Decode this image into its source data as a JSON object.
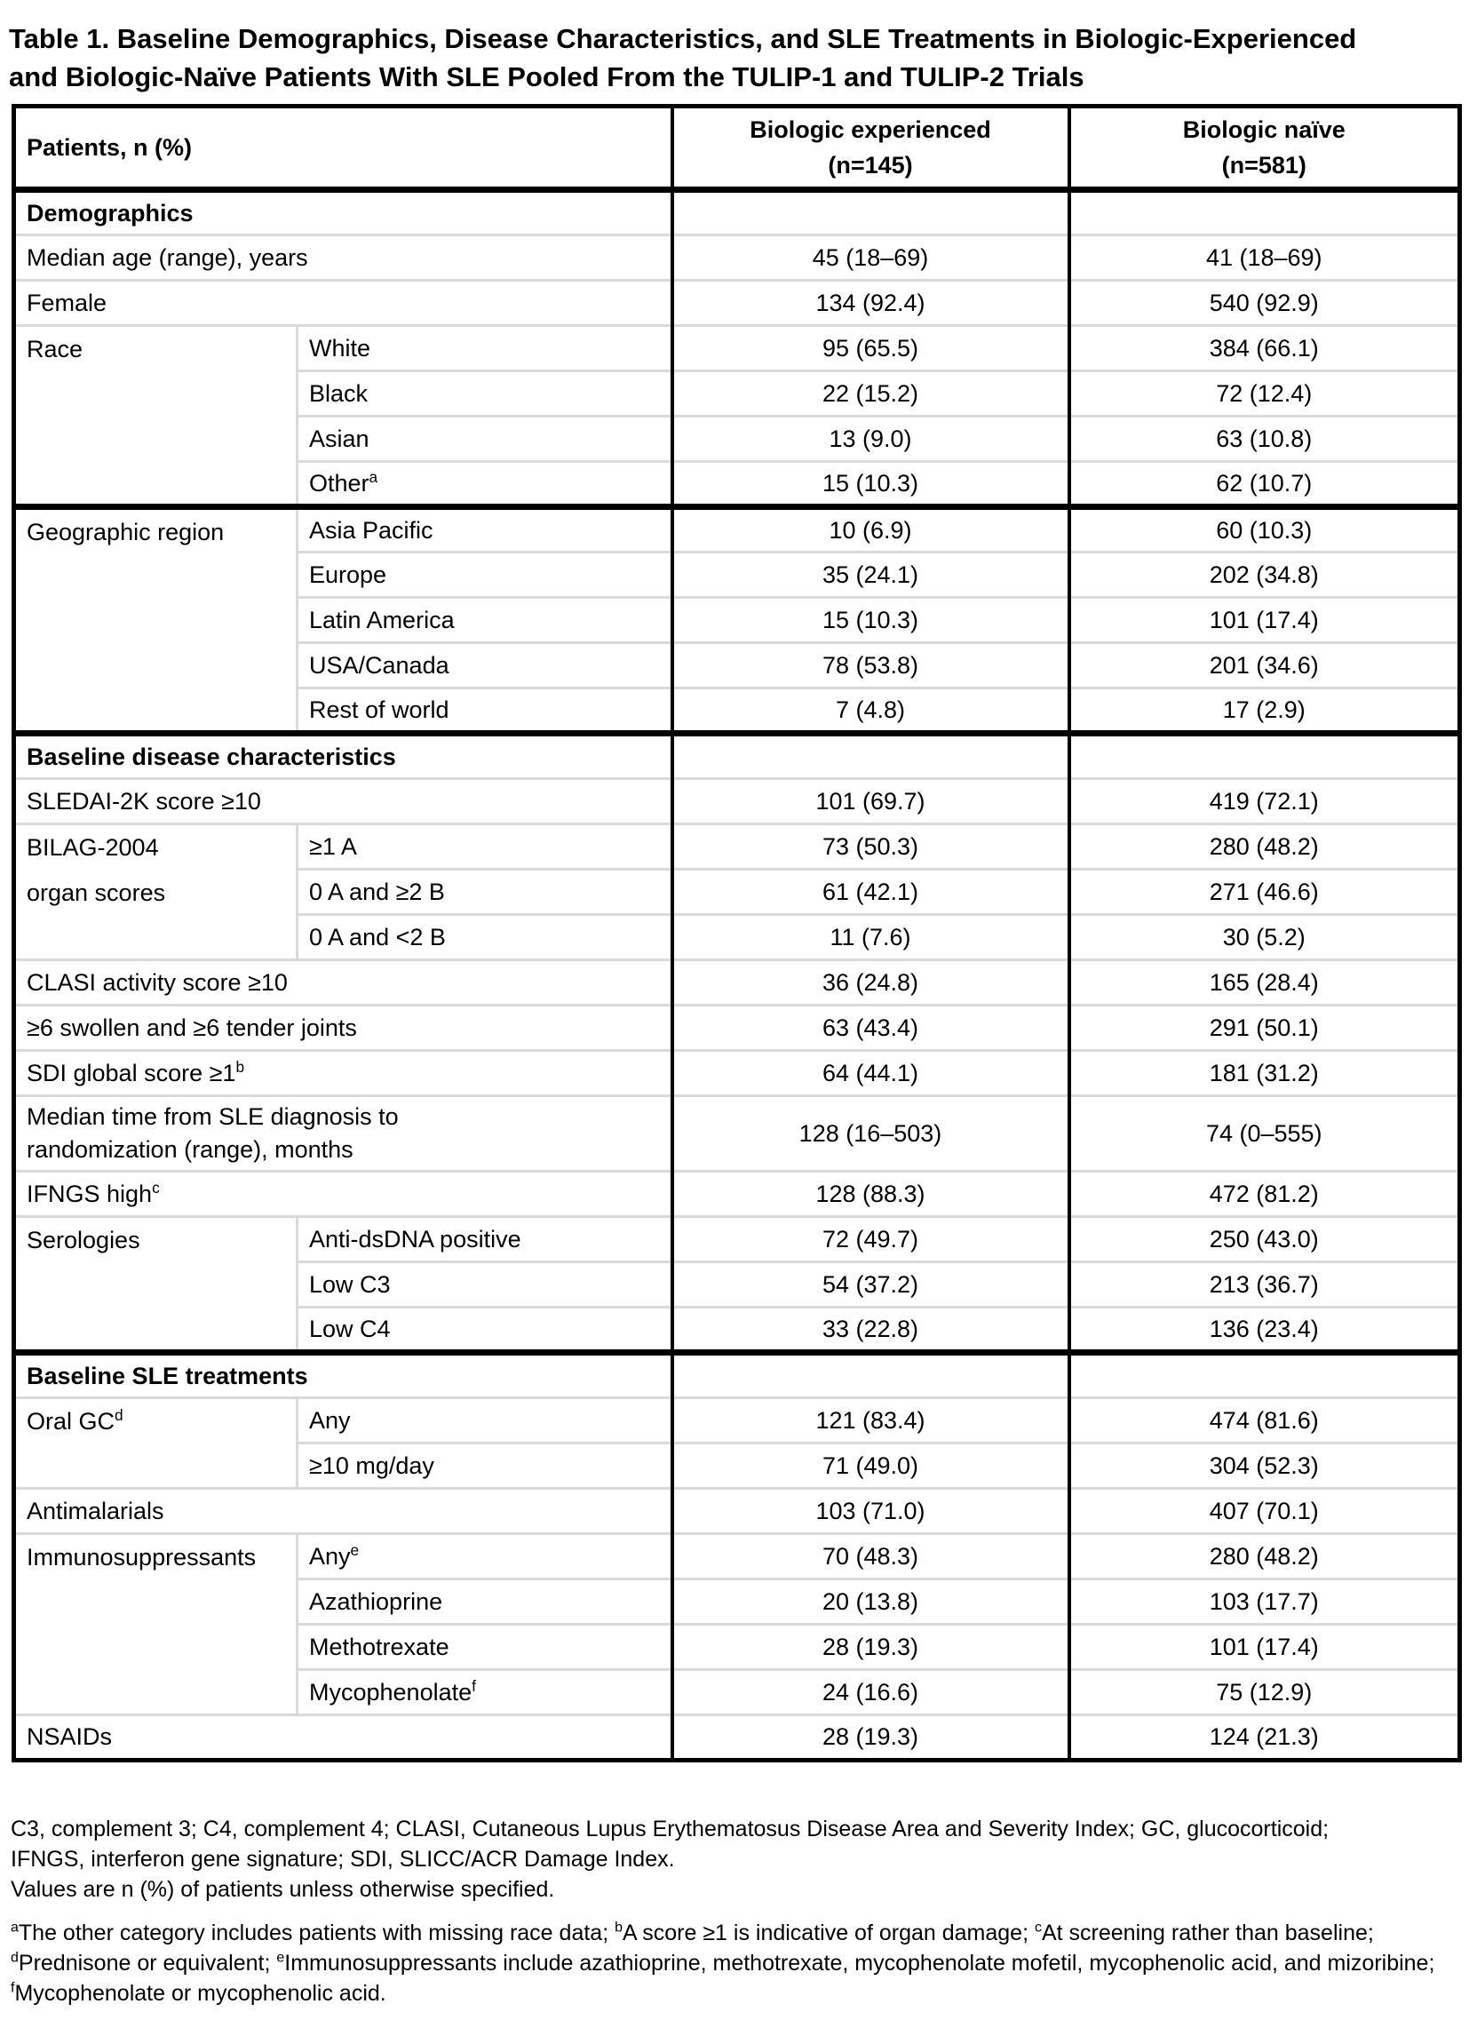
{
  "title": "Table 1. Baseline Demographics, Disease Characteristics, and SLE Treatments in Biologic-Experienced\nand Biologic-Naïve Patients With SLE Pooled From the TULIP-1 and TULIP-2 Trials",
  "colors": {
    "grid_gray": "#d9d9d9",
    "border_black": "#000000",
    "background": "#ffffff"
  },
  "table": {
    "corner_label": "Patients, n (%)",
    "columns": [
      {
        "name": "Biologic experienced",
        "n": "(n=145)"
      },
      {
        "name": "Biologic naïve",
        "n": "(n=581)"
      }
    ],
    "rows": [
      {
        "type": "section",
        "heading": "Demographics"
      },
      {
        "type": "row",
        "label": "Median age (range), years",
        "values": [
          "45 (18–69)",
          "41 (18–69)"
        ]
      },
      {
        "type": "row",
        "label": "Female",
        "values": [
          "134 (92.4)",
          "540 (92.9)"
        ]
      },
      {
        "type": "row",
        "group": {
          "label": "Race",
          "rowspan": 4
        },
        "label": "White",
        "values": [
          "95 (65.5)",
          "384 (66.1)"
        ]
      },
      {
        "type": "row",
        "in_group": true,
        "label": "Black",
        "values": [
          "22 (15.2)",
          "72 (12.4)"
        ]
      },
      {
        "type": "row",
        "in_group": true,
        "label": "Asian",
        "values": [
          "13 (9.0)",
          "63 (10.8)"
        ]
      },
      {
        "type": "row",
        "in_group": true,
        "label": "Other",
        "sup": "a",
        "values": [
          "15 (10.3)",
          "62 (10.7)"
        ]
      },
      {
        "type": "row",
        "thick_top": true,
        "group": {
          "label": "Geographic region",
          "rowspan": 5
        },
        "label": "Asia Pacific",
        "values": [
          "10 (6.9)",
          "60 (10.3)"
        ]
      },
      {
        "type": "row",
        "in_group": true,
        "label": "Europe",
        "values": [
          "35 (24.1)",
          "202 (34.8)"
        ]
      },
      {
        "type": "row",
        "in_group": true,
        "label": "Latin America",
        "values": [
          "15 (10.3)",
          "101 (17.4)"
        ]
      },
      {
        "type": "row",
        "in_group": true,
        "label": "USA/Canada",
        "values": [
          "78 (53.8)",
          "201 (34.6)"
        ]
      },
      {
        "type": "row",
        "in_group": true,
        "label": "Rest of world",
        "values": [
          "7 (4.8)",
          "17 (2.9)"
        ]
      },
      {
        "type": "section",
        "thick_top": true,
        "heading": "Baseline disease characteristics"
      },
      {
        "type": "row",
        "label": "SLEDAI-2K score ≥10",
        "values": [
          "101 (69.7)",
          "419 (72.1)"
        ]
      },
      {
        "type": "row",
        "group": {
          "label": "BILAG-2004\norgan scores",
          "rowspan": 3
        },
        "label": "≥1 A",
        "values": [
          "73 (50.3)",
          "280 (48.2)"
        ]
      },
      {
        "type": "row",
        "in_group": true,
        "label": "0 A and ≥2 B",
        "values": [
          "61 (42.1)",
          "271 (46.6)"
        ]
      },
      {
        "type": "row",
        "in_group": true,
        "label": "0 A and <2 B",
        "values": [
          "11 (7.6)",
          "30 (5.2)"
        ]
      },
      {
        "type": "row",
        "label": "CLASI activity score ≥10",
        "values": [
          "36 (24.8)",
          "165 (28.4)"
        ]
      },
      {
        "type": "row",
        "label": "≥6 swollen and ≥6 tender joints",
        "values": [
          "63 (43.4)",
          "291 (50.1)"
        ]
      },
      {
        "type": "row",
        "label": "SDI global score ≥1",
        "sup": "b",
        "values": [
          "64 (44.1)",
          "181 (31.2)"
        ]
      },
      {
        "type": "row",
        "tall": true,
        "label": "Median time from SLE diagnosis to\nrandomization (range), months",
        "values": [
          "128 (16–503)",
          "74 (0–555)"
        ]
      },
      {
        "type": "row",
        "label": "IFNGS high",
        "sup": "c",
        "values": [
          "128 (88.3)",
          "472 (81.2)"
        ]
      },
      {
        "type": "row",
        "group": {
          "label": "Serologies",
          "rowspan": 3
        },
        "label": "Anti-dsDNA positive",
        "values": [
          "72 (49.7)",
          "250 (43.0)"
        ]
      },
      {
        "type": "row",
        "in_group": true,
        "label": "Low C3",
        "values": [
          "54 (37.2)",
          "213 (36.7)"
        ]
      },
      {
        "type": "row",
        "in_group": true,
        "label": "Low C4",
        "values": [
          "33 (22.8)",
          "136 (23.4)"
        ]
      },
      {
        "type": "section",
        "thick_top": true,
        "heading": "Baseline SLE treatments"
      },
      {
        "type": "row",
        "group": {
          "label": "Oral GC",
          "sup": "d",
          "rowspan": 2
        },
        "label": "Any",
        "values": [
          "121 (83.4)",
          "474 (81.6)"
        ]
      },
      {
        "type": "row",
        "in_group": true,
        "label": "≥10 mg/day",
        "values": [
          "71 (49.0)",
          "304 (52.3)"
        ]
      },
      {
        "type": "row",
        "label": "Antimalarials",
        "values": [
          "103 (71.0)",
          "407 (70.1)"
        ]
      },
      {
        "type": "row",
        "group": {
          "label": "Immunosuppressants",
          "rowspan": 4
        },
        "label": "Any",
        "sup": "e",
        "values": [
          "70 (48.3)",
          "280 (48.2)"
        ]
      },
      {
        "type": "row",
        "in_group": true,
        "label": "Azathioprine",
        "values": [
          "20 (13.8)",
          "103 (17.7)"
        ]
      },
      {
        "type": "row",
        "in_group": true,
        "label": "Methotrexate",
        "values": [
          "28 (19.3)",
          "101 (17.4)"
        ]
      },
      {
        "type": "row",
        "in_group": true,
        "label": "Mycophenolate",
        "sup": "f",
        "values": [
          "24 (16.6)",
          "75 (12.9)"
        ]
      },
      {
        "type": "row",
        "label": "NSAIDs",
        "values": [
          "28 (19.3)",
          "124 (21.3)"
        ]
      }
    ]
  },
  "footnotes": {
    "abbrev": [
      "C3, complement 3; C4, complement 4; CLASI, Cutaneous Lupus Erythematosus Disease Area and Severity Index; GC, glucocorticoid;",
      "IFNGS, interferon gene signature; SDI, SLICC/ACR Damage Index.",
      "Values are n (%) of patients unless otherwise specified."
    ],
    "notes": [
      [
        {
          "sup": "a"
        },
        {
          "t": "The other category includes patients with missing race data; "
        },
        {
          "sup": "b"
        },
        {
          "t": "A score ≥1 is indicative of organ damage; "
        },
        {
          "sup": "c"
        },
        {
          "t": "At screening rather than baseline;"
        }
      ],
      [
        {
          "sup": "d"
        },
        {
          "t": "Prednisone or equivalent; "
        },
        {
          "sup": "e"
        },
        {
          "t": "Immunosuppressants include azathioprine, methotrexate, mycophenolate mofetil, mycophenolic acid, and mizoribine;"
        }
      ],
      [
        {
          "sup": "f"
        },
        {
          "t": "Mycophenolate or mycophenolic acid."
        }
      ]
    ]
  }
}
